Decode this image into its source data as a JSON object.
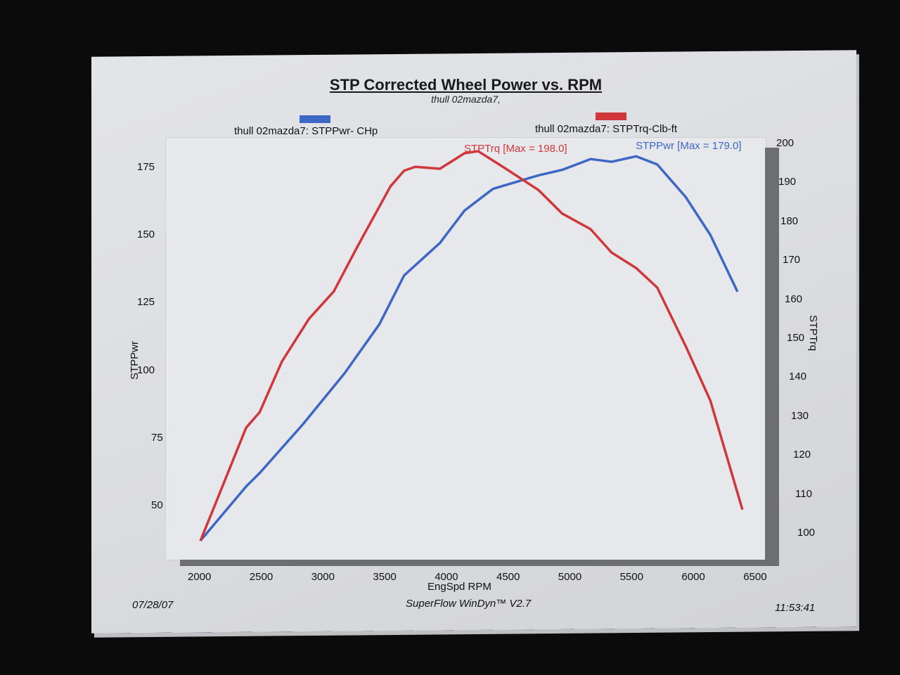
{
  "chart_data": {
    "type": "line",
    "title": "STP Corrected Wheel Power vs. RPM",
    "subtitle": "thull 02mazda7,",
    "xlabel": "EngSpd  RPM",
    "ylabel_left": "STPPwr",
    "ylabel_right": "STPTrq",
    "xlim": [
      2000,
      6500
    ],
    "ylim_left": [
      50,
      175
    ],
    "ylim_right": [
      100,
      200
    ],
    "x_ticks": [
      "2000",
      "2500",
      "3000",
      "3500",
      "4000",
      "4500",
      "5000",
      "5500",
      "6000",
      "6500"
    ],
    "y_left_ticks": [
      "175",
      "150",
      "125",
      "100",
      "75",
      "50"
    ],
    "y_right_ticks": [
      "200",
      "190",
      "180",
      "170",
      "160",
      "150",
      "140",
      "130",
      "120",
      "110",
      "100"
    ],
    "legend_placement": "top",
    "grid": false,
    "series": [
      {
        "name": "thull 02mazda7: STPPwr- CHp",
        "axis": "left",
        "color": "#3d67c4",
        "annotation": "STPPwr [Max = 179.0]",
        "x": [
          2000,
          2370,
          2480,
          2830,
          3170,
          3450,
          3650,
          3940,
          4140,
          4370,
          4740,
          4930,
          5160,
          5330,
          5530,
          5700,
          5930,
          6130,
          6350
        ],
        "y": [
          37,
          57,
          62,
          80,
          99,
          117,
          135,
          147,
          159,
          167,
          172,
          174,
          178,
          177,
          179,
          176,
          164,
          150,
          129
        ]
      },
      {
        "name": "thull 02mazda7: STPTrq-Clb-ft",
        "axis": "right",
        "color": "#d0373a",
        "annotation": "STPTrq [Max = 198.0]",
        "x": [
          2000,
          2090,
          2370,
          2480,
          2660,
          2880,
          3080,
          3280,
          3540,
          3650,
          3740,
          3940,
          4140,
          4250,
          4450,
          4740,
          4930,
          5160,
          5330,
          5530,
          5700,
          5930,
          6130,
          6390
        ],
        "y": [
          98,
          105,
          127,
          131,
          144,
          155,
          162,
          174,
          189,
          193,
          194,
          193.5,
          197.5,
          198,
          194,
          188,
          182,
          178,
          172,
          168,
          163,
          148,
          134,
          106
        ]
      }
    ]
  },
  "footer": {
    "date": "07/28/07",
    "software": "SuperFlow WinDyn™ V2.7",
    "time": "11:53:41"
  }
}
